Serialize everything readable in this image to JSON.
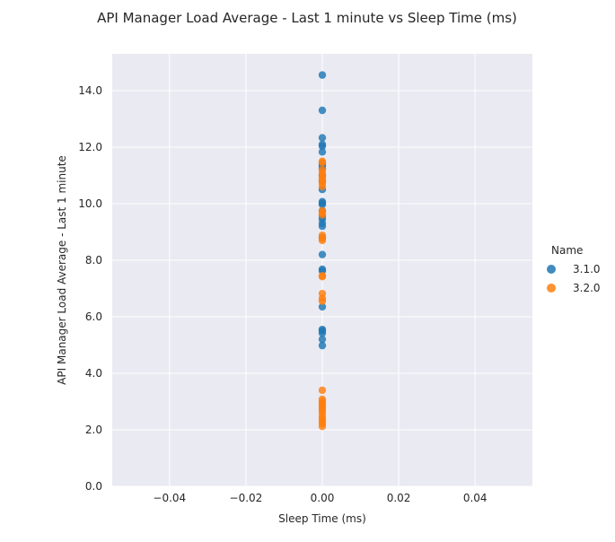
{
  "chart_data": {
    "type": "scatter",
    "title": "API Manager Load Average - Last 1 minute vs Sleep Time (ms)",
    "xlabel": "Sleep Time (ms)",
    "ylabel": "API Manager Load Average - Last 1 minute",
    "xlim": [
      -0.055,
      0.055
    ],
    "ylim": [
      0,
      15.3
    ],
    "x_ticks": [
      -0.04,
      -0.02,
      0.0,
      0.02,
      0.04
    ],
    "x_tick_labels": [
      "−0.04",
      "−0.02",
      "0.00",
      "0.02",
      "0.04"
    ],
    "y_ticks": [
      0,
      2,
      4,
      6,
      8,
      10,
      12,
      14
    ],
    "y_tick_labels": [
      "0.0",
      "2.0",
      "4.0",
      "6.0",
      "8.0",
      "10.0",
      "12.0",
      "14.0"
    ],
    "grid": true,
    "legend": {
      "title": "Name",
      "placement": "right"
    },
    "series": [
      {
        "name": "3.1.0",
        "color": "#1f77b4",
        "points": [
          [
            0,
            14.55
          ],
          [
            0,
            13.3
          ],
          [
            0,
            12.33
          ],
          [
            0,
            12.1
          ],
          [
            0,
            12.03
          ],
          [
            0,
            11.83
          ],
          [
            0,
            11.42
          ],
          [
            0,
            11.35
          ],
          [
            0,
            11.25
          ],
          [
            0,
            11.0
          ],
          [
            0,
            10.8
          ],
          [
            0,
            10.5
          ],
          [
            0,
            10.07
          ],
          [
            0,
            10.02
          ],
          [
            0,
            9.97
          ],
          [
            0,
            9.75
          ],
          [
            0,
            9.55
          ],
          [
            0,
            9.45
          ],
          [
            0,
            9.3
          ],
          [
            0,
            9.2
          ],
          [
            0,
            8.8
          ],
          [
            0,
            8.2
          ],
          [
            0,
            7.68
          ],
          [
            0,
            7.62
          ],
          [
            0,
            6.35
          ],
          [
            0,
            5.55
          ],
          [
            0,
            5.5
          ],
          [
            0,
            5.42
          ],
          [
            0,
            5.2
          ],
          [
            0,
            4.98
          ]
        ]
      },
      {
        "name": "3.2.0",
        "color": "#ff7f0e",
        "points": [
          [
            0,
            11.5
          ],
          [
            0,
            11.45
          ],
          [
            0,
            11.2
          ],
          [
            0,
            11.1
          ],
          [
            0,
            10.98
          ],
          [
            0,
            10.9
          ],
          [
            0,
            10.82
          ],
          [
            0,
            10.72
          ],
          [
            0,
            10.6
          ],
          [
            0,
            9.75
          ],
          [
            0,
            9.68
          ],
          [
            0,
            9.6
          ],
          [
            0,
            8.88
          ],
          [
            0,
            8.78
          ],
          [
            0,
            8.7
          ],
          [
            0,
            7.45
          ],
          [
            0,
            7.42
          ],
          [
            0,
            6.82
          ],
          [
            0,
            6.65
          ],
          [
            0,
            6.55
          ],
          [
            0,
            3.4
          ],
          [
            0,
            3.08
          ],
          [
            0,
            3.0
          ],
          [
            0,
            2.92
          ],
          [
            0,
            2.85
          ],
          [
            0,
            2.78
          ],
          [
            0,
            2.7
          ],
          [
            0,
            2.6
          ],
          [
            0,
            2.48
          ],
          [
            0,
            2.38
          ],
          [
            0,
            2.3
          ],
          [
            0,
            2.22
          ],
          [
            0,
            2.12
          ]
        ]
      }
    ]
  }
}
